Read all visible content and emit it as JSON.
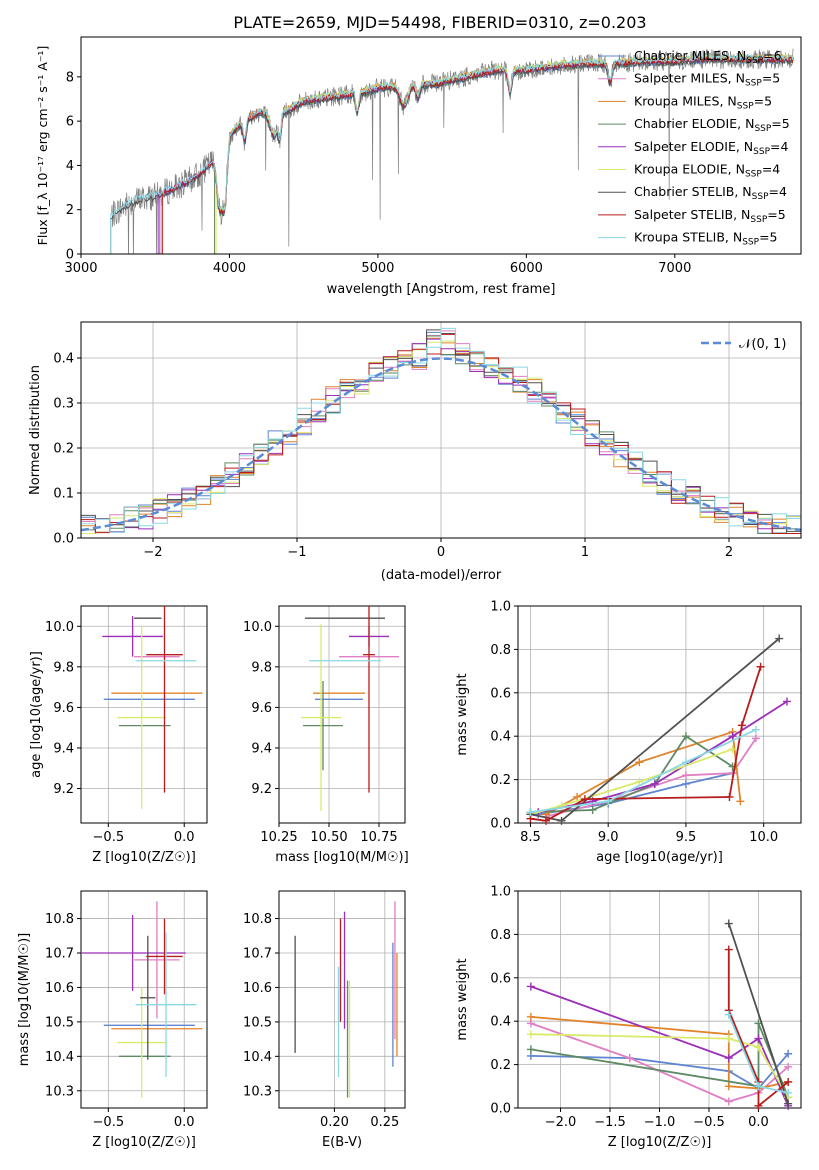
{
  "figure": {
    "title": "PLATE=2659, MJD=54498, FIBERID=0310, z=0.203"
  },
  "series_styles": [
    {
      "name": "Chabrier MILES, N_SSP=6",
      "color": "#5f84d1"
    },
    {
      "name": "Salpeter MILES, N_SSP=5",
      "color": "#e07fc4"
    },
    {
      "name": "Kroupa MILES, N_SSP=5",
      "color": "#e0832a"
    },
    {
      "name": "Chabrier ELODIE, N_SSP=5",
      "color": "#5e8a64"
    },
    {
      "name": "Salpeter ELODIE, N_SSP=4",
      "color": "#9b2fb8"
    },
    {
      "name": "Kroupa ELODIE, N_SSP=4",
      "color": "#d9ea6a"
    },
    {
      "name": "Chabrier STELIB, N_SSP=4",
      "color": "#505050"
    },
    {
      "name": "Salpeter STELIB, N_SSP=5",
      "color": "#b81c1c"
    },
    {
      "name": "Kroupa STELIB, N_SSP=5",
      "color": "#8ad8e3"
    }
  ],
  "chart_data": [
    {
      "id": "spectrum",
      "type": "line",
      "title": "PLATE=2659, MJD=54498, FIBERID=0310, z=0.203",
      "xlabel": "wavelength [Angstrom, rest frame]",
      "ylabel": "Flux [f_λ 10⁻¹⁷ erg cm⁻² s⁻¹ A⁻¹]",
      "xlim": [
        3000,
        7850
      ],
      "ylim": [
        0,
        9.8
      ],
      "xticks": [
        "3000",
        "4000",
        "5000",
        "6000",
        "7000"
      ],
      "yticks": [
        "0",
        "2",
        "4",
        "6",
        "8"
      ],
      "legend": [
        "Chabrier MILES, N_SSP=6",
        "Salpeter MILES, N_SSP=5",
        "Kroupa MILES, N_SSP=5",
        "Chabrier ELODIE, N_SSP=5",
        "Salpeter ELODIE, N_SSP=4",
        "Kroupa ELODIE, N_SSP=4",
        "Chabrier STELIB, N_SSP=4",
        "Salpeter STELIB, N_SSP=5",
        "Kroupa STELIB, N_SSP=5"
      ],
      "legend_display": [
        [
          "Chabrier MILES, N",
          "SSP",
          "=6"
        ],
        [
          "Salpeter MILES, N",
          "SSP",
          "=5"
        ],
        [
          "Kroupa MILES, N",
          "SSP",
          "=5"
        ],
        [
          "Chabrier ELODIE, N",
          "SSP",
          "=5"
        ],
        [
          "Salpeter ELODIE, N",
          "SSP",
          "=4"
        ],
        [
          "Kroupa ELODIE, N",
          "SSP",
          "=4"
        ],
        [
          "Chabrier STELIB, N",
          "SSP",
          "=4"
        ],
        [
          "Salpeter STELIB, N",
          "SSP",
          "=5"
        ],
        [
          "Kroupa STELIB, N",
          "SSP",
          "=5"
        ]
      ],
      "legend_placement": "right",
      "data_color": "#808080",
      "model_continuum": {
        "x": [
          3200,
          3300,
          3400,
          3500,
          3600,
          3700,
          3800,
          3900,
          4000,
          4100,
          4200,
          4300,
          4400,
          4500,
          4600,
          4700,
          4800,
          4900,
          5000,
          5200,
          5400,
          5600,
          5800,
          6000,
          6200,
          6400,
          6600,
          6800,
          7000,
          7200,
          7400,
          7600,
          7800
        ],
        "y": [
          1.7,
          2.2,
          2.5,
          2.6,
          2.9,
          3.2,
          3.6,
          4.3,
          5.4,
          6.0,
          6.4,
          6.3,
          6.5,
          6.9,
          7.0,
          7.1,
          7.2,
          7.3,
          7.5,
          7.6,
          7.7,
          8.0,
          8.3,
          8.3,
          8.5,
          8.6,
          8.6,
          8.7,
          8.7,
          8.8,
          8.8,
          8.8,
          8.8
        ]
      },
      "model_start_wavelengths": [
        3530,
        3540,
        3900,
        3900,
        3520,
        3910,
        3200,
        3550,
        3200
      ],
      "grid": false
    },
    {
      "id": "residuals",
      "type": "bar",
      "xlabel": "(data-model)/error",
      "ylabel": "Normed distribution",
      "xlim": [
        -2.5,
        2.5
      ],
      "ylim": [
        0,
        0.48
      ],
      "xticks": [
        "−2",
        "−1",
        "0",
        "1",
        "2"
      ],
      "yticks": [
        "0.0",
        "0.1",
        "0.2",
        "0.3",
        "0.4"
      ],
      "bins_x": [
        -2.5,
        -2.4,
        -2.3,
        -2.2,
        -2.1,
        -2.0,
        -1.9,
        -1.8,
        -1.7,
        -1.6,
        -1.5,
        -1.4,
        -1.3,
        -1.2,
        -1.1,
        -1.0,
        -0.9,
        -0.8,
        -0.7,
        -0.6,
        -0.5,
        -0.4,
        -0.3,
        -0.2,
        -0.1,
        0.0,
        0.1,
        0.2,
        0.3,
        0.4,
        0.5,
        0.6,
        0.7,
        0.8,
        0.9,
        1.0,
        1.1,
        1.2,
        1.3,
        1.4,
        1.5,
        1.6,
        1.7,
        1.8,
        1.9,
        2.0,
        2.1,
        2.2,
        2.3,
        2.4
      ],
      "normal_curve": {
        "label": "𝒩(0, 1)",
        "color": "#5a8bd6",
        "mean": 0,
        "sigma": 1
      },
      "legend_placement": "top-right",
      "grid": true
    },
    {
      "id": "age_vs_Z",
      "type": "scatter",
      "xlabel": "Z [log10(Z/Z☉)]",
      "ylabel": "age  [log10(age/yr)]",
      "xlim": [
        -0.68,
        0.15
      ],
      "ylim": [
        9.03,
        10.1
      ],
      "xticks": [
        [
          "−0.5",
          -0.5
        ],
        [
          "0.0",
          0.0
        ]
      ],
      "yticks": [
        [
          "9.2",
          9.2
        ],
        [
          "9.4",
          9.4
        ],
        [
          "9.6",
          9.6
        ],
        [
          "9.8",
          9.8
        ],
        [
          "10.0",
          10.0
        ]
      ],
      "points": [
        {
          "x": -0.23,
          "y": 9.64,
          "xerr": 0.3,
          "yerr": 0.0
        },
        {
          "x": -0.18,
          "y": 9.85,
          "xerr": 0.15,
          "yerr": 0.0
        },
        {
          "x": -0.18,
          "y": 9.67,
          "xerr": 0.3,
          "yerr": 0.0
        },
        {
          "x": -0.26,
          "y": 9.51,
          "xerr": 0.17,
          "yerr": 0.0
        },
        {
          "x": -0.34,
          "y": 9.95,
          "xerr": 0.2,
          "yerr": 0.1
        },
        {
          "x": -0.28,
          "y": 9.55,
          "xerr": 0.16,
          "yerr": 0.45
        },
        {
          "x": -0.24,
          "y": 10.04,
          "xerr": 0.09,
          "yerr": 0.0
        },
        {
          "x": -0.13,
          "y": 9.86,
          "xerr": 0.12,
          "yerr": 0.68
        },
        {
          "x": -0.12,
          "y": 9.83,
          "xerr": 0.2,
          "yerr": 0.0
        }
      ],
      "grid": true
    },
    {
      "id": "age_vs_mass",
      "type": "scatter",
      "xlabel": "mass [log10(M/M☉)]",
      "ylabel": "",
      "xlim": [
        10.25,
        10.88
      ],
      "ylim": [
        9.03,
        10.1
      ],
      "xticks": [
        [
          "10.25",
          10.25
        ],
        [
          "10.50",
          10.5
        ],
        [
          "10.75",
          10.75
        ]
      ],
      "yticks": [
        [
          "9.2",
          9.2
        ],
        [
          "9.4",
          9.4
        ],
        [
          "9.6",
          9.6
        ],
        [
          "9.8",
          9.8
        ],
        [
          "10.0",
          10.0
        ]
      ],
      "points": [
        {
          "x": 10.55,
          "y": 9.64,
          "xerr": 0.12,
          "yerr": 0.0
        },
        {
          "x": 10.7,
          "y": 9.85,
          "xerr": 0.15,
          "yerr": 0.0
        },
        {
          "x": 10.55,
          "y": 9.67,
          "xerr": 0.13,
          "yerr": 0.0
        },
        {
          "x": 10.47,
          "y": 9.51,
          "xerr": 0.1,
          "yerr": 0.22
        },
        {
          "x": 10.7,
          "y": 9.95,
          "xerr": 0.1,
          "yerr": 0.05
        },
        {
          "x": 10.46,
          "y": 9.55,
          "xerr": 0.1,
          "yerr": 0.46
        },
        {
          "x": 10.58,
          "y": 10.04,
          "xerr": 0.2,
          "yerr": 0.0
        },
        {
          "x": 10.7,
          "y": 9.86,
          "xerr": 0.03,
          "yerr": 0.68
        },
        {
          "x": 10.58,
          "y": 9.83,
          "xerr": 0.18,
          "yerr": 0.0
        }
      ],
      "grid": true
    },
    {
      "id": "massweight_vs_age",
      "type": "line",
      "xlabel": "age  [log10(age/yr)]",
      "ylabel": "mass weight",
      "xlim": [
        8.42,
        10.24
      ],
      "ylim": [
        0,
        1.0
      ],
      "xticks": [
        [
          "8.5",
          8.5
        ],
        [
          "9.0",
          9.0
        ],
        [
          "9.5",
          9.5
        ],
        [
          "10.0",
          10.0
        ]
      ],
      "yticks": [
        [
          "0.0",
          0.0
        ],
        [
          "0.2",
          0.2
        ],
        [
          "0.4",
          0.4
        ],
        [
          "0.6",
          0.6
        ],
        [
          "0.8",
          0.8
        ],
        [
          "1.0",
          1.0
        ]
      ],
      "series": [
        {
          "x": [
            8.55,
            9.0,
            9.5,
            9.8
          ],
          "y": [
            0.04,
            0.09,
            0.18,
            0.23
          ]
        },
        {
          "x": [
            8.6,
            9.0,
            9.5,
            9.8,
            9.95
          ],
          "y": [
            0.03,
            0.1,
            0.22,
            0.23,
            0.39
          ]
        },
        {
          "x": [
            8.6,
            8.8,
            9.2,
            9.8,
            9.85
          ],
          "y": [
            0.04,
            0.12,
            0.28,
            0.42,
            0.1
          ]
        },
        {
          "x": [
            8.5,
            8.9,
            9.3,
            9.5,
            9.8
          ],
          "y": [
            0.05,
            0.06,
            0.18,
            0.4,
            0.26
          ]
        },
        {
          "x": [
            8.55,
            8.9,
            9.3,
            9.8,
            10.15
          ],
          "y": [
            0.05,
            0.1,
            0.18,
            0.4,
            0.56
          ]
        },
        {
          "x": [
            8.5,
            8.7,
            9.2,
            9.8
          ],
          "y": [
            0.04,
            0.08,
            0.19,
            0.34
          ]
        },
        {
          "x": [
            8.5,
            8.7,
            10.1
          ],
          "y": [
            0.04,
            0.01,
            0.85
          ]
        },
        {
          "x": [
            8.5,
            8.6,
            8.85,
            9.78,
            9.86,
            9.98
          ],
          "y": [
            0.02,
            0.01,
            0.11,
            0.12,
            0.45,
            0.72
          ]
        },
        {
          "x": [
            8.5,
            9.0,
            9.5,
            9.95
          ],
          "y": [
            0.05,
            0.1,
            0.28,
            0.43
          ]
        }
      ],
      "grid": true
    },
    {
      "id": "mass_vs_Z",
      "type": "scatter",
      "xlabel": "Z [log10(Z/Z☉)]",
      "ylabel": "mass [log10(M/M☉)]",
      "xlim": [
        -0.68,
        0.15
      ],
      "ylim": [
        10.25,
        10.88
      ],
      "xticks": [
        [
          "−0.5",
          -0.5
        ],
        [
          "0.0",
          0.0
        ]
      ],
      "yticks": [
        [
          "10.3",
          10.3
        ],
        [
          "10.4",
          10.4
        ],
        [
          "10.5",
          10.5
        ],
        [
          "10.6",
          10.6
        ],
        [
          "10.7",
          10.7
        ],
        [
          "10.8",
          10.8
        ]
      ],
      "points": [
        {
          "x": -0.23,
          "y": 10.49,
          "xerr": 0.3,
          "yerr": 0.0
        },
        {
          "x": -0.18,
          "y": 10.68,
          "xerr": 0.15,
          "yerr": 0.17
        },
        {
          "x": -0.18,
          "y": 10.48,
          "xerr": 0.3,
          "yerr": 0.0
        },
        {
          "x": -0.26,
          "y": 10.4,
          "xerr": 0.17,
          "yerr": 0.0
        },
        {
          "x": -0.34,
          "y": 10.7,
          "xerr": 0.35,
          "yerr": 0.11
        },
        {
          "x": -0.28,
          "y": 10.44,
          "xerr": 0.16,
          "yerr": 0.16
        },
        {
          "x": -0.24,
          "y": 10.57,
          "xerr": 0.05,
          "yerr": 0.18
        },
        {
          "x": -0.13,
          "y": 10.69,
          "xerr": 0.12,
          "yerr": 0.11
        },
        {
          "x": -0.12,
          "y": 10.55,
          "xerr": 0.2,
          "yerr": 0.21
        }
      ],
      "grid": true
    },
    {
      "id": "mass_vs_EBV",
      "type": "scatter",
      "xlabel": "E(B-V)",
      "ylabel": "",
      "xlim": [
        0.145,
        0.27
      ],
      "ylim": [
        10.25,
        10.88
      ],
      "xticks": [
        [
          "0.20",
          0.2
        ],
        [
          "0.25",
          0.25
        ]
      ],
      "yticks": [
        [
          "10.3",
          10.3
        ],
        [
          "10.4",
          10.4
        ],
        [
          "10.5",
          10.5
        ],
        [
          "10.6",
          10.6
        ],
        [
          "10.7",
          10.7
        ],
        [
          "10.8",
          10.8
        ]
      ],
      "points": [
        {
          "x": 0.258,
          "y": 10.55,
          "xerr": 0.0,
          "yerr": 0.18
        },
        {
          "x": 0.26,
          "y": 10.65,
          "xerr": 0.0,
          "yerr": 0.2
        },
        {
          "x": 0.262,
          "y": 10.55,
          "xerr": 0.0,
          "yerr": 0.15
        },
        {
          "x": 0.213,
          "y": 10.45,
          "xerr": 0.0,
          "yerr": 0.17
        },
        {
          "x": 0.21,
          "y": 10.65,
          "xerr": 0.0,
          "yerr": 0.17
        },
        {
          "x": 0.215,
          "y": 10.45,
          "xerr": 0.0,
          "yerr": 0.17
        },
        {
          "x": 0.161,
          "y": 10.58,
          "xerr": 0.0,
          "yerr": 0.17
        },
        {
          "x": 0.206,
          "y": 10.65,
          "xerr": 0.0,
          "yerr": 0.15
        },
        {
          "x": 0.204,
          "y": 10.5,
          "xerr": 0.0,
          "yerr": 0.16
        }
      ],
      "grid": true
    },
    {
      "id": "massweight_vs_Z",
      "type": "line",
      "xlabel": "Z [log10(Z/Z☉)]",
      "ylabel": "mass weight",
      "xlim": [
        -2.43,
        0.43
      ],
      "ylim": [
        0,
        1.0
      ],
      "xticks": [
        [
          "−2.0",
          -2.0
        ],
        [
          "−1.5",
          -1.5
        ],
        [
          "−1.0",
          -1.0
        ],
        [
          "−0.5",
          -0.5
        ],
        [
          "0.0",
          0.0
        ]
      ],
      "yticks": [
        [
          "0.0",
          0.0
        ],
        [
          "0.2",
          0.2
        ],
        [
          "0.4",
          0.4
        ],
        [
          "0.6",
          0.6
        ],
        [
          "0.8",
          0.8
        ],
        [
          "1.0",
          1.0
        ]
      ],
      "series": [
        {
          "x": [
            -2.3,
            -1.3,
            -0.3,
            0.0,
            0.3
          ],
          "y": [
            0.24,
            0.23,
            0.17,
            0.09,
            0.25
          ]
        },
        {
          "x": [
            -2.3,
            -1.3,
            -0.3,
            0.0,
            0.3
          ],
          "y": [
            0.39,
            0.23,
            0.03,
            0.07,
            0.19
          ]
        },
        {
          "x": [
            -2.3,
            -0.3,
            -0.3,
            0.0,
            0.3
          ],
          "y": [
            0.42,
            0.34,
            0.1,
            0.09,
            0.12
          ]
        },
        {
          "x": [
            -2.3,
            0.0,
            0.0,
            0.3
          ],
          "y": [
            0.27,
            0.1,
            0.39,
            0.05
          ]
        },
        {
          "x": [
            -2.3,
            -0.3,
            0.0,
            0.3
          ],
          "y": [
            0.56,
            0.23,
            0.32,
            0.01
          ]
        },
        {
          "x": [
            -2.3,
            -0.3,
            0.0,
            0.3
          ],
          "y": [
            0.34,
            0.32,
            0.28,
            0.05
          ]
        },
        {
          "x": [
            -0.3,
            0.3
          ],
          "y": [
            0.85,
            0.02
          ]
        },
        {
          "x": [
            -0.3,
            -0.3,
            0.0,
            0.0,
            0.3
          ],
          "y": [
            0.73,
            0.45,
            0.12,
            0.01,
            0.12
          ]
        },
        {
          "x": [
            -0.3,
            0.0,
            0.3
          ],
          "y": [
            0.43,
            0.1,
            0.07
          ]
        }
      ],
      "grid": true
    }
  ]
}
